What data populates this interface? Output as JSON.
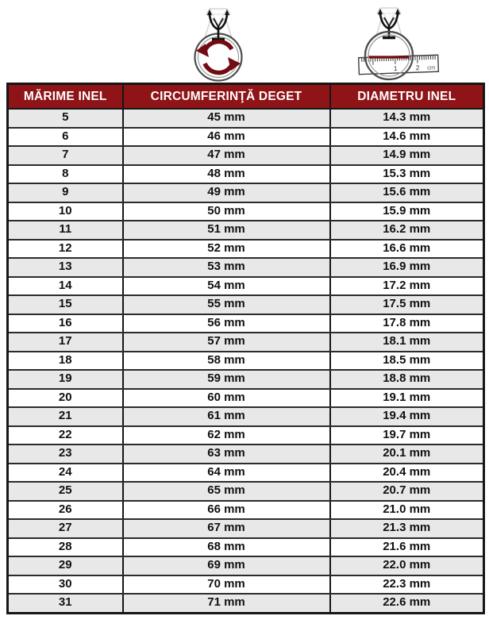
{
  "colors": {
    "header_bg": "#8E1418",
    "header_text": "#ffffff",
    "stripe": "#E8E8E8",
    "accent_red": "#720B12",
    "border": "#161616"
  },
  "icons": {
    "circumference": {
      "name": "ring-circumference-icon"
    },
    "diameter": {
      "name": "ring-diameter-icon",
      "ruler_labels": {
        "one": "1",
        "two": "2",
        "unit": "cm"
      }
    }
  },
  "table": {
    "columns": [
      "MĂRIME INEL",
      "CIRCUMFERINŢĂ DEGET",
      "DIAMETRU INEL"
    ],
    "rows": [
      [
        "5",
        "45 mm",
        "14.3 mm"
      ],
      [
        "6",
        "46 mm",
        "14.6 mm"
      ],
      [
        "7",
        "47 mm",
        "14.9 mm"
      ],
      [
        "8",
        "48 mm",
        "15.3 mm"
      ],
      [
        "9",
        "49 mm",
        "15.6 mm"
      ],
      [
        "10",
        "50 mm",
        "15.9 mm"
      ],
      [
        "11",
        "51 mm",
        "16.2 mm"
      ],
      [
        "12",
        "52 mm",
        "16.6 mm"
      ],
      [
        "13",
        "53 mm",
        "16.9 mm"
      ],
      [
        "14",
        "54 mm",
        "17.2 mm"
      ],
      [
        "15",
        "55 mm",
        "17.5 mm"
      ],
      [
        "16",
        "56 mm",
        "17.8 mm"
      ],
      [
        "17",
        "57 mm",
        "18.1 mm"
      ],
      [
        "18",
        "58 mm",
        "18.5 mm"
      ],
      [
        "19",
        "59 mm",
        "18.8 mm"
      ],
      [
        "20",
        "60 mm",
        "19.1 mm"
      ],
      [
        "21",
        "61 mm",
        "19.4 mm"
      ],
      [
        "22",
        "62 mm",
        "19.7 mm"
      ],
      [
        "23",
        "63 mm",
        "20.1 mm"
      ],
      [
        "24",
        "64 mm",
        "20.4 mm"
      ],
      [
        "25",
        "65 mm",
        "20.7 mm"
      ],
      [
        "26",
        "66 mm",
        "21.0 mm"
      ],
      [
        "27",
        "67 mm",
        "21.3 mm"
      ],
      [
        "28",
        "68 mm",
        "21.6 mm"
      ],
      [
        "29",
        "69 mm",
        "22.0 mm"
      ],
      [
        "30",
        "70 mm",
        "22.3 mm"
      ],
      [
        "31",
        "71 mm",
        "22.6 mm"
      ]
    ]
  }
}
